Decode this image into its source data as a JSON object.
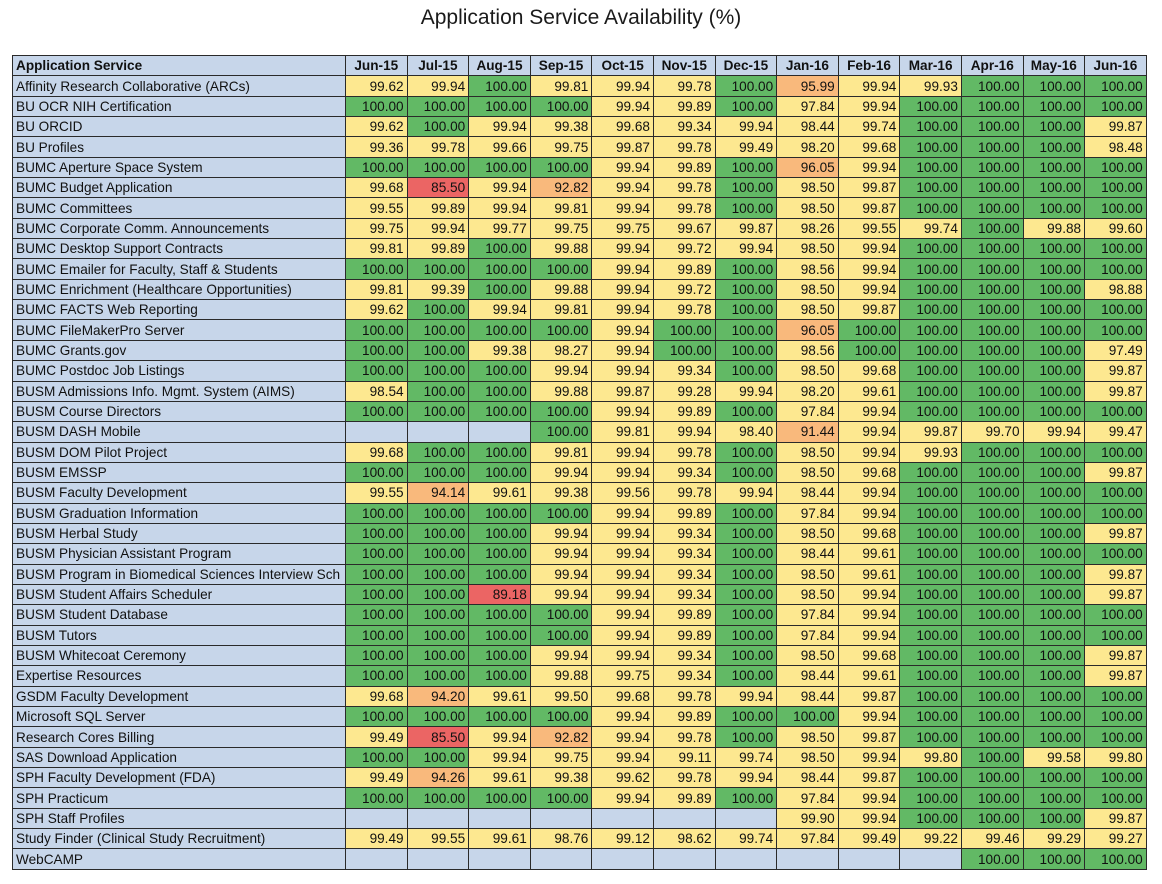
{
  "title": "Application Service Availability (%)",
  "colors": {
    "header_bg": "#c7d6ea",
    "band_green": "#62b965",
    "band_yellow": "#fde890",
    "band_orange": "#f9b97c",
    "band_red": "#eb6564"
  },
  "chart_data": {
    "type": "table",
    "title": "Application Service Availability (%)",
    "row_header_label": "Application Service",
    "columns": [
      "Jun-15",
      "Jul-15",
      "Aug-15",
      "Sep-15",
      "Oct-15",
      "Nov-15",
      "Dec-15",
      "Jan-16",
      "Feb-16",
      "Mar-16",
      "Apr-16",
      "May-16",
      "Jun-16"
    ],
    "rows": [
      {
        "name": "Affinity Research Collaborative (ARCs)",
        "values": [
          "99.62",
          "99.94",
          "100.00",
          "99.81",
          "99.94",
          "99.78",
          "100.00",
          "95.99",
          "99.94",
          "99.93",
          "100.00",
          "100.00",
          "100.00"
        ]
      },
      {
        "name": "BU OCR NIH Certification",
        "values": [
          "100.00",
          "100.00",
          "100.00",
          "100.00",
          "99.94",
          "99.89",
          "100.00",
          "97.84",
          "99.94",
          "100.00",
          "100.00",
          "100.00",
          "100.00"
        ]
      },
      {
        "name": "BU ORCID",
        "values": [
          "99.62",
          "100.00",
          "99.94",
          "99.38",
          "99.68",
          "99.34",
          "99.94",
          "98.44",
          "99.74",
          "100.00",
          "100.00",
          "100.00",
          "99.87"
        ]
      },
      {
        "name": "BU Profiles",
        "values": [
          "99.36",
          "99.78",
          "99.66",
          "99.75",
          "99.87",
          "99.78",
          "99.49",
          "98.20",
          "99.68",
          "100.00",
          "100.00",
          "100.00",
          "98.48"
        ]
      },
      {
        "name": "BUMC Aperture Space System",
        "values": [
          "100.00",
          "100.00",
          "100.00",
          "100.00",
          "99.94",
          "99.89",
          "100.00",
          "96.05",
          "99.94",
          "100.00",
          "100.00",
          "100.00",
          "100.00"
        ]
      },
      {
        "name": "BUMC Budget Application",
        "values": [
          "99.68",
          "85.50",
          "99.94",
          "92.82",
          "99.94",
          "99.78",
          "100.00",
          "98.50",
          "99.87",
          "100.00",
          "100.00",
          "100.00",
          "100.00"
        ]
      },
      {
        "name": "BUMC Committees",
        "values": [
          "99.55",
          "99.89",
          "99.94",
          "99.81",
          "99.94",
          "99.78",
          "100.00",
          "98.50",
          "99.87",
          "100.00",
          "100.00",
          "100.00",
          "100.00"
        ]
      },
      {
        "name": "BUMC Corporate Comm. Announcements",
        "values": [
          "99.75",
          "99.94",
          "99.77",
          "99.75",
          "99.75",
          "99.67",
          "99.87",
          "98.26",
          "99.55",
          "99.74",
          "100.00",
          "99.88",
          "99.60"
        ]
      },
      {
        "name": "BUMC Desktop Support Contracts",
        "values": [
          "99.81",
          "99.89",
          "100.00",
          "99.88",
          "99.94",
          "99.72",
          "99.94",
          "98.50",
          "99.94",
          "100.00",
          "100.00",
          "100.00",
          "100.00"
        ]
      },
      {
        "name": "BUMC Emailer for Faculty, Staff & Students",
        "values": [
          "100.00",
          "100.00",
          "100.00",
          "100.00",
          "99.94",
          "99.89",
          "100.00",
          "98.56",
          "99.94",
          "100.00",
          "100.00",
          "100.00",
          "100.00"
        ]
      },
      {
        "name": "BUMC Enrichment (Healthcare Opportunities)",
        "values": [
          "99.81",
          "99.39",
          "100.00",
          "99.88",
          "99.94",
          "99.72",
          "100.00",
          "98.50",
          "99.94",
          "100.00",
          "100.00",
          "100.00",
          "98.88"
        ]
      },
      {
        "name": "BUMC FACTS Web Reporting",
        "values": [
          "99.62",
          "100.00",
          "99.94",
          "99.81",
          "99.94",
          "99.78",
          "100.00",
          "98.50",
          "99.87",
          "100.00",
          "100.00",
          "100.00",
          "100.00"
        ]
      },
      {
        "name": "BUMC FileMakerPro Server",
        "values": [
          "100.00",
          "100.00",
          "100.00",
          "100.00",
          "99.94",
          "100.00",
          "100.00",
          "96.05",
          "100.00",
          "100.00",
          "100.00",
          "100.00",
          "100.00"
        ]
      },
      {
        "name": "BUMC Grants.gov",
        "values": [
          "100.00",
          "100.00",
          "99.38",
          "98.27",
          "99.94",
          "100.00",
          "100.00",
          "98.56",
          "100.00",
          "100.00",
          "100.00",
          "100.00",
          "97.49"
        ]
      },
      {
        "name": "BUMC Postdoc Job Listings",
        "values": [
          "100.00",
          "100.00",
          "100.00",
          "99.94",
          "99.94",
          "99.34",
          "100.00",
          "98.50",
          "99.68",
          "100.00",
          "100.00",
          "100.00",
          "99.87"
        ]
      },
      {
        "name": "BUSM Admissions Info. Mgmt. System (AIMS)",
        "values": [
          "98.54",
          "100.00",
          "100.00",
          "99.88",
          "99.87",
          "99.28",
          "99.94",
          "98.20",
          "99.61",
          "100.00",
          "100.00",
          "100.00",
          "99.87"
        ]
      },
      {
        "name": "BUSM Course Directors",
        "values": [
          "100.00",
          "100.00",
          "100.00",
          "100.00",
          "99.94",
          "99.89",
          "100.00",
          "97.84",
          "99.94",
          "100.00",
          "100.00",
          "100.00",
          "100.00"
        ]
      },
      {
        "name": "BUSM DASH Mobile",
        "values": [
          "",
          "",
          "",
          "100.00",
          "99.81",
          "99.94",
          "98.40",
          "91.44",
          "99.94",
          "99.87",
          "99.70",
          "99.94",
          "99.47"
        ]
      },
      {
        "name": "BUSM DOM Pilot Project",
        "values": [
          "99.68",
          "100.00",
          "100.00",
          "99.81",
          "99.94",
          "99.78",
          "100.00",
          "98.50",
          "99.94",
          "99.93",
          "100.00",
          "100.00",
          "100.00"
        ]
      },
      {
        "name": "BUSM EMSSP",
        "values": [
          "100.00",
          "100.00",
          "100.00",
          "99.94",
          "99.94",
          "99.34",
          "100.00",
          "98.50",
          "99.68",
          "100.00",
          "100.00",
          "100.00",
          "99.87"
        ]
      },
      {
        "name": "BUSM Faculty Development",
        "values": [
          "99.55",
          "94.14",
          "99.61",
          "99.38",
          "99.56",
          "99.78",
          "99.94",
          "98.44",
          "99.94",
          "100.00",
          "100.00",
          "100.00",
          "100.00"
        ]
      },
      {
        "name": "BUSM Graduation Information",
        "values": [
          "100.00",
          "100.00",
          "100.00",
          "100.00",
          "99.94",
          "99.89",
          "100.00",
          "97.84",
          "99.94",
          "100.00",
          "100.00",
          "100.00",
          "100.00"
        ]
      },
      {
        "name": "BUSM Herbal Study",
        "values": [
          "100.00",
          "100.00",
          "100.00",
          "99.94",
          "99.94",
          "99.34",
          "100.00",
          "98.50",
          "99.68",
          "100.00",
          "100.00",
          "100.00",
          "99.87"
        ]
      },
      {
        "name": "BUSM Physician Assistant Program",
        "values": [
          "100.00",
          "100.00",
          "100.00",
          "99.94",
          "99.94",
          "99.34",
          "100.00",
          "98.44",
          "99.61",
          "100.00",
          "100.00",
          "100.00",
          "100.00"
        ]
      },
      {
        "name": "BUSM Program in Biomedical Sciences Interview Sch",
        "values": [
          "100.00",
          "100.00",
          "100.00",
          "99.94",
          "99.94",
          "99.34",
          "100.00",
          "98.50",
          "99.61",
          "100.00",
          "100.00",
          "100.00",
          "99.87"
        ]
      },
      {
        "name": "BUSM Student Affairs Scheduler",
        "values": [
          "100.00",
          "100.00",
          "89.18",
          "99.94",
          "99.94",
          "99.34",
          "100.00",
          "98.50",
          "99.94",
          "100.00",
          "100.00",
          "100.00",
          "99.87"
        ]
      },
      {
        "name": "BUSM Student Database",
        "values": [
          "100.00",
          "100.00",
          "100.00",
          "100.00",
          "99.94",
          "99.89",
          "100.00",
          "97.84",
          "99.94",
          "100.00",
          "100.00",
          "100.00",
          "100.00"
        ]
      },
      {
        "name": "BUSM Tutors",
        "values": [
          "100.00",
          "100.00",
          "100.00",
          "100.00",
          "99.94",
          "99.89",
          "100.00",
          "97.84",
          "99.94",
          "100.00",
          "100.00",
          "100.00",
          "100.00"
        ]
      },
      {
        "name": "BUSM Whitecoat Ceremony",
        "values": [
          "100.00",
          "100.00",
          "100.00",
          "99.94",
          "99.94",
          "99.34",
          "100.00",
          "98.50",
          "99.68",
          "100.00",
          "100.00",
          "100.00",
          "99.87"
        ]
      },
      {
        "name": "Expertise Resources",
        "values": [
          "100.00",
          "100.00",
          "100.00",
          "99.88",
          "99.75",
          "99.34",
          "100.00",
          "98.44",
          "99.61",
          "100.00",
          "100.00",
          "100.00",
          "99.87"
        ]
      },
      {
        "name": "GSDM Faculty Development",
        "values": [
          "99.68",
          "94.20",
          "99.61",
          "99.50",
          "99.68",
          "99.78",
          "99.94",
          "98.44",
          "99.87",
          "100.00",
          "100.00",
          "100.00",
          "100.00"
        ]
      },
      {
        "name": "Microsoft SQL Server",
        "values": [
          "100.00",
          "100.00",
          "100.00",
          "100.00",
          "99.94",
          "99.89",
          "100.00",
          "100.00",
          "99.94",
          "100.00",
          "100.00",
          "100.00",
          "100.00"
        ]
      },
      {
        "name": "Research Cores Billing",
        "values": [
          "99.49",
          "85.50",
          "99.94",
          "92.82",
          "99.94",
          "99.78",
          "100.00",
          "98.50",
          "99.87",
          "100.00",
          "100.00",
          "100.00",
          "100.00"
        ]
      },
      {
        "name": "SAS Download Application",
        "values": [
          "100.00",
          "100.00",
          "99.94",
          "99.75",
          "99.94",
          "99.11",
          "99.74",
          "98.50",
          "99.94",
          "99.80",
          "100.00",
          "99.58",
          "99.80"
        ]
      },
      {
        "name": "SPH Faculty Development (FDA)",
        "values": [
          "99.49",
          "94.26",
          "99.61",
          "99.38",
          "99.62",
          "99.78",
          "99.94",
          "98.44",
          "99.87",
          "100.00",
          "100.00",
          "100.00",
          "100.00"
        ]
      },
      {
        "name": "SPH Practicum",
        "values": [
          "100.00",
          "100.00",
          "100.00",
          "100.00",
          "99.94",
          "99.89",
          "100.00",
          "97.84",
          "99.94",
          "100.00",
          "100.00",
          "100.00",
          "100.00"
        ]
      },
      {
        "name": "SPH Staff Profiles",
        "values": [
          "",
          "",
          "",
          "",
          "",
          "",
          "",
          "99.90",
          "99.94",
          "100.00",
          "100.00",
          "100.00",
          "99.87"
        ]
      },
      {
        "name": "Study Finder (Clinical Study Recruitment)",
        "values": [
          "99.49",
          "99.55",
          "99.61",
          "98.76",
          "99.12",
          "98.62",
          "99.74",
          "97.84",
          "99.49",
          "99.22",
          "99.46",
          "99.29",
          "99.27"
        ]
      },
      {
        "name": "WebCAMP",
        "values": [
          "",
          "",
          "",
          "",
          "",
          "",
          "",
          "",
          "",
          "",
          "100.00",
          "100.00",
          "100.00"
        ]
      }
    ]
  }
}
